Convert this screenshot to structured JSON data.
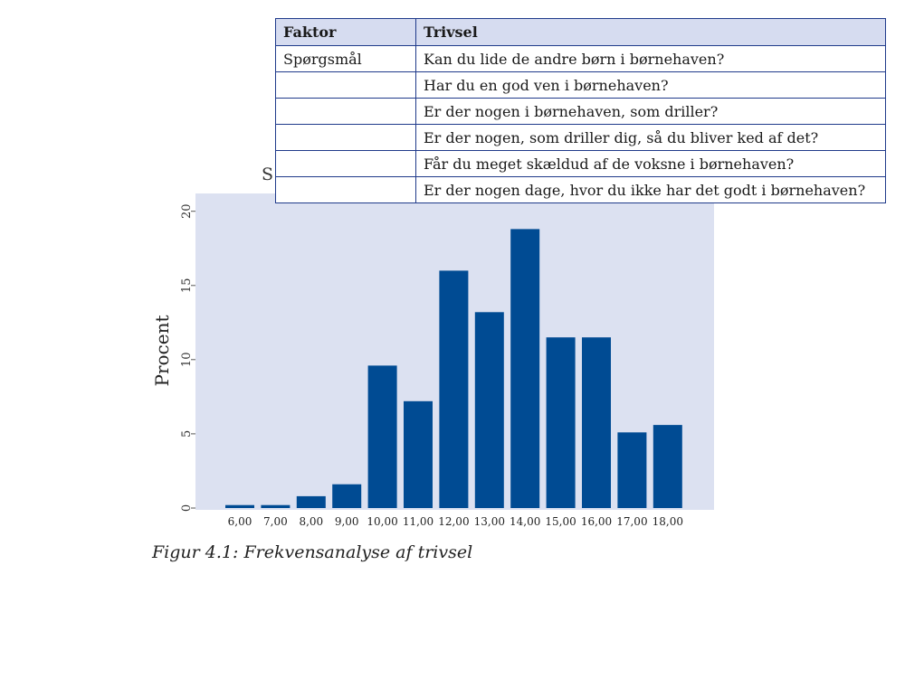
{
  "table": {
    "headers": [
      "Faktor",
      "Trivsel"
    ],
    "rows": [
      [
        "Spørgsmål",
        "Kan du lide de andre børn i børnehaven?"
      ],
      [
        "",
        "Har du en god ven i børnehaven?"
      ],
      [
        "",
        "Er der nogen i børnehaven, som driller?"
      ],
      [
        "",
        "Er der nogen, som driller dig, så du bliver ked af det?"
      ],
      [
        "",
        "Får du meget skældud af de voksne i børnehaven?"
      ],
      [
        "",
        "Er der nogen dage, hvor du ikke har det godt i børnehaven?"
      ]
    ]
  },
  "partial_title_letter": "S",
  "caption": "Figur 4.1: Frekvensanalyse af trivsel",
  "colors": {
    "bar": "#004b93",
    "plot_bg": "#dce1f1",
    "table_border": "#1f3a8a",
    "header_bg": "#d6dcf0"
  },
  "chart_data": {
    "type": "bar",
    "categories": [
      "6,00",
      "7,00",
      "8,00",
      "9,00",
      "10,00",
      "11,00",
      "12,00",
      "13,00",
      "14,00",
      "15,00",
      "16,00",
      "17,00",
      "18,00"
    ],
    "values": [
      0.2,
      0.2,
      0.8,
      1.6,
      9.6,
      7.2,
      16.0,
      13.2,
      18.8,
      11.5,
      11.5,
      5.1,
      5.6
    ],
    "xlabel": "",
    "ylabel": "Procent",
    "yticks": [
      "0",
      "5",
      "10",
      "15",
      "20"
    ],
    "ylim": [
      0,
      21.2
    ],
    "grid": false
  }
}
